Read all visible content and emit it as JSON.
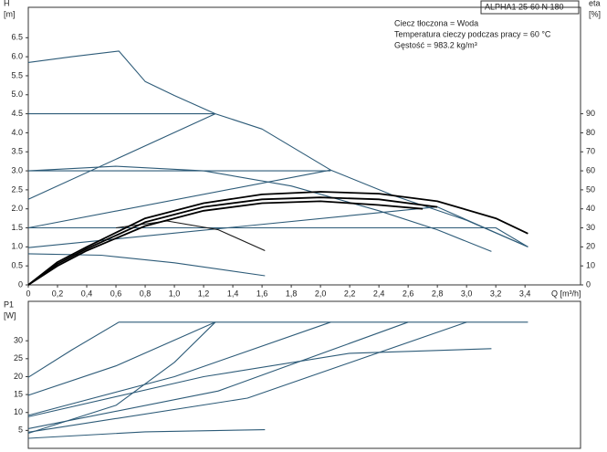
{
  "chart_data": [
    {
      "type": "line",
      "title": "ALPHA1 25-60 N 180",
      "annotations": [
        "Ciecz tłoczona = Woda",
        "Temperatura cieczy podczas pracy = 60 °C",
        "Gęstość = 983.2 kg/m³"
      ],
      "ylabel": "H",
      "yunit": "[m]",
      "y2label": "eta",
      "y2unit": "[%]",
      "xlabel": "Q [m³/h]",
      "xlim": [
        0,
        3.78
      ],
      "ylim": [
        0,
        7.3
      ],
      "y2lim": [
        0,
        146
      ],
      "xticks": [
        0,
        {
          "value": 0.2,
          "label": "0,2"
        },
        {
          "value": 0.4,
          "label": "0,4"
        },
        {
          "value": 0.6,
          "label": "0,6"
        },
        {
          "value": 0.8,
          "label": "0,8"
        },
        {
          "value": 1.0,
          "label": "1,0"
        },
        {
          "value": 1.2,
          "label": "1,2"
        },
        {
          "value": 1.4,
          "label": "1,4"
        },
        {
          "value": 1.6,
          "label": "1,6"
        },
        {
          "value": 1.8,
          "label": "1,8"
        },
        {
          "value": 2.0,
          "label": "2,0"
        },
        {
          "value": 2.2,
          "label": "2,2"
        },
        {
          "value": 2.4,
          "label": "2,4"
        },
        {
          "value": 2.6,
          "label": "2,6"
        },
        {
          "value": 2.8,
          "label": "2,8"
        },
        {
          "value": 3.0,
          "label": "3,0"
        },
        {
          "value": 3.2,
          "label": "3,2"
        },
        {
          "value": 3.4,
          "label": "3,4"
        }
      ],
      "yticks": [
        0,
        0.5,
        {
          "value": 1,
          "label": "1.0"
        },
        1.5,
        {
          "value": 2,
          "label": "2.0"
        },
        2.5,
        {
          "value": 3,
          "label": "3.0"
        },
        3.5,
        {
          "value": 4,
          "label": "4.0"
        },
        4.5,
        {
          "value": 5,
          "label": "5.0"
        },
        5.5,
        {
          "value": 6,
          "label": "6.0"
        },
        6.5
      ],
      "y2ticks": [
        0,
        10,
        20,
        30,
        40,
        50,
        60,
        70,
        80,
        90
      ],
      "series": [
        {
          "color": "#2d5b78",
          "x": [
            0,
            0.3,
            0.62,
            0.8,
            1.0,
            1.28,
            1.6,
            2.07,
            2.5,
            3.0,
            3.42
          ],
          "values": [
            5.85,
            6.0,
            6.15,
            5.35,
            4.98,
            4.5,
            4.1,
            3.02,
            2.35,
            1.7,
            1.0
          ]
        },
        {
          "color": "#2d5b78",
          "x": [
            0,
            1.28
          ],
          "values": [
            4.5,
            4.5
          ]
        },
        {
          "color": "#2d5b78",
          "x": [
            0,
            1.28
          ],
          "values": [
            2.25,
            4.5
          ]
        },
        {
          "color": "#2d5b78",
          "x": [
            0,
            2.07
          ],
          "values": [
            3.0,
            3.0
          ]
        },
        {
          "color": "#2d5b78",
          "x": [
            0,
            2.07
          ],
          "values": [
            1.5,
            3.02
          ]
        },
        {
          "color": "#2d5b78",
          "x": [
            0,
            3.2,
            3.42
          ],
          "values": [
            1.5,
            1.5,
            1.0
          ]
        },
        {
          "color": "#2d5b78",
          "x": [
            0,
            2.8,
            3.42
          ],
          "values": [
            0.98,
            2.05,
            1.0
          ]
        },
        {
          "color": "#2d5b78",
          "x": [
            0,
            0.6,
            1.2,
            1.8,
            2.4,
            2.8,
            3.17
          ],
          "values": [
            3.0,
            3.12,
            3.0,
            2.6,
            1.95,
            1.45,
            0.88
          ]
        },
        {
          "color": "#2d5b78",
          "x": [
            0,
            0.5,
            1.0,
            1.62
          ],
          "values": [
            0.82,
            0.78,
            0.58,
            0.24
          ]
        },
        {
          "color": "#1a1a1a",
          "x": [
            0.6,
            0.95,
            1.3,
            1.62
          ],
          "values": [
            1.5,
            1.68,
            1.45,
            0.9
          ]
        },
        {
          "color": "#000000",
          "axis": "y2",
          "x": [
            0,
            0.2,
            0.4,
            0.8,
            1.2,
            1.6,
            2.0,
            2.4,
            2.8,
            3.2,
            3.42
          ],
          "values": [
            0,
            12,
            20,
            35,
            43,
            47.6,
            49,
            48,
            44,
            35,
            27
          ]
        },
        {
          "color": "#000000",
          "axis": "y2",
          "x": [
            0,
            0.2,
            0.4,
            0.8,
            1.2,
            1.6,
            2.0,
            2.4,
            2.8
          ],
          "values": [
            0,
            11,
            19,
            33,
            41,
            45,
            46,
            45,
            41
          ]
        },
        {
          "color": "#000000",
          "axis": "y2",
          "x": [
            0,
            0.2,
            0.4,
            0.8,
            1.2,
            1.6,
            2.0,
            2.4,
            2.7
          ],
          "values": [
            0,
            10,
            18,
            31,
            39,
            43,
            44,
            42,
            40
          ]
        }
      ]
    },
    {
      "type": "line",
      "ylabel": "P1",
      "yunit": "[W]",
      "xlim": [
        0,
        3.78
      ],
      "ylim": [
        0,
        41
      ],
      "yticks": [
        5,
        10,
        15,
        20,
        25,
        30
      ],
      "series": [
        {
          "color": "#2d5b78",
          "x": [
            0,
            0.3,
            0.62,
            3.42
          ],
          "values": [
            19.8,
            27.5,
            35.2,
            35.2
          ]
        },
        {
          "color": "#2d5b78",
          "x": [
            0,
            0.6,
            1.28
          ],
          "values": [
            14.8,
            23,
            35.2
          ]
        },
        {
          "color": "#2d5b78",
          "x": [
            0,
            0.6,
            1.0,
            1.28
          ],
          "values": [
            4.2,
            12,
            24,
            35.2
          ]
        },
        {
          "color": "#2d5b78",
          "x": [
            0,
            1.0,
            2.07
          ],
          "values": [
            9.2,
            20,
            35.2
          ]
        },
        {
          "color": "#2d5b78",
          "x": [
            0,
            1.3,
            2.6
          ],
          "values": [
            5.5,
            16,
            35.2
          ]
        },
        {
          "color": "#2d5b78",
          "x": [
            0,
            1.5,
            3.0
          ],
          "values": [
            4.5,
            14,
            35.2
          ]
        },
        {
          "color": "#2d5b78",
          "x": [
            0,
            1.2,
            2.2,
            3.17
          ],
          "values": [
            8.8,
            20,
            26.5,
            27.8
          ]
        },
        {
          "color": "#2d5b78",
          "x": [
            0,
            0.8,
            1.62
          ],
          "values": [
            2.8,
            4.6,
            5.2
          ]
        }
      ]
    }
  ]
}
